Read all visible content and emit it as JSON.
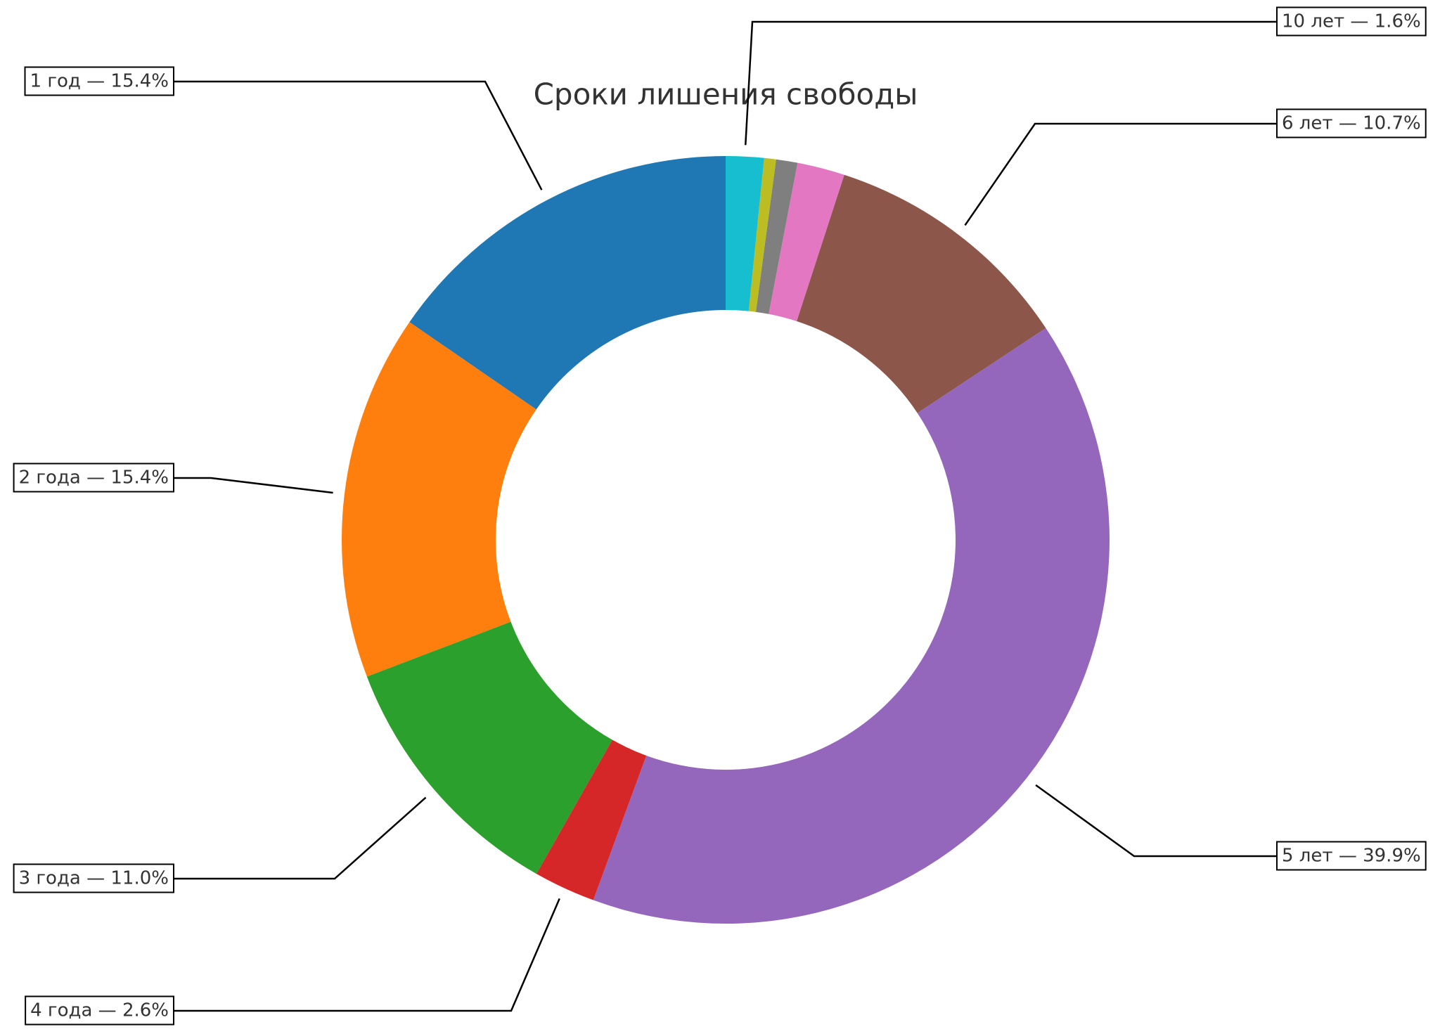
{
  "chart_data": {
    "type": "donut",
    "title": "Сроки лишения свободы",
    "values": [
      15.4,
      15.4,
      11.0,
      2.6,
      39.9,
      10.7,
      2.0,
      0.9,
      0.5,
      1.6
    ],
    "value_labels": [
      "1 год — 15.4%",
      "2 года — 15.4%",
      "3 года — 11.0%",
      "4 года — 2.6%",
      "5 лет — 39.9%",
      "6 лет — 10.7%",
      null,
      null,
      null,
      "10 лет — 1.6%"
    ],
    "colors": [
      "#1f77b4",
      "#ff7f0e",
      "#2ca02c",
      "#d62728",
      "#9467bd",
      "#8c564b",
      "#e377c2",
      "#7f7f7f",
      "#bcbd22",
      "#17becf"
    ]
  }
}
